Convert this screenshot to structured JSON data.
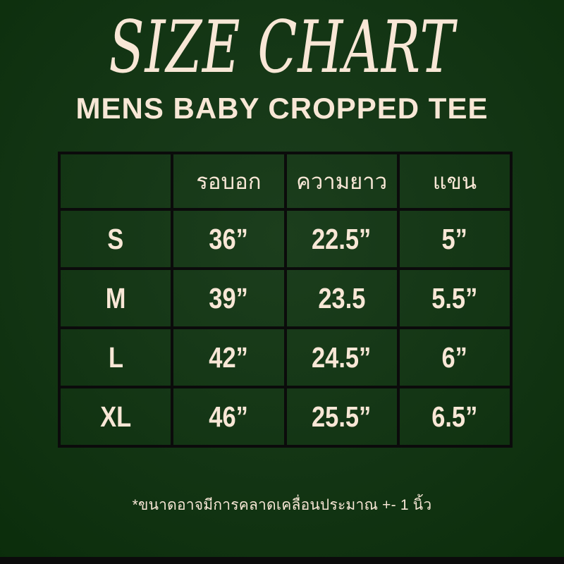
{
  "header": {
    "title": "SIZE CHART",
    "subtitle": "MENS BABY CROPPED TEE"
  },
  "chart_data": {
    "type": "table",
    "title": "SIZE CHART",
    "subtitle": "MENS BABY CROPPED TEE",
    "columns": [
      "",
      "รอบอก",
      "ความยาว",
      "แขน"
    ],
    "rows": [
      [
        "S",
        "36”",
        "22.5”",
        "5”"
      ],
      [
        "M",
        "39”",
        "23.5",
        "5.5”"
      ],
      [
        "L",
        "42”",
        "24.5”",
        "6”"
      ],
      [
        "XL",
        "46”",
        "25.5”",
        "6.5”"
      ]
    ]
  },
  "footer": {
    "note": "*ขนาดอาจมีการคลาดเคลื่อนประมาณ +- 1 นิ้ว"
  },
  "colors": {
    "background": "#143615",
    "background_center": "#1c3e1d",
    "background_edge": "#0b2d0b",
    "text_cream": "#f8e7d6",
    "grid_black": "#0b0b0b"
  }
}
